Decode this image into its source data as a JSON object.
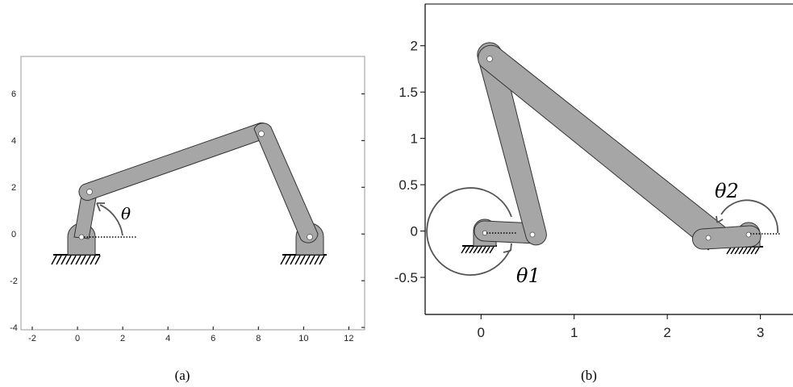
{
  "panel_a": {
    "caption": "(a)",
    "angle_label": "θ",
    "x_ticks": [
      "-2",
      "0",
      "2",
      "4",
      "6",
      "8",
      "10",
      "12"
    ],
    "y_ticks": [
      "-4",
      "-2",
      "0",
      "2",
      "4",
      "6"
    ],
    "x_range": [
      -2.5,
      12.7
    ],
    "y_range": [
      -4.1,
      7.6
    ],
    "ground_pivots": [
      [
        0,
        0
      ],
      [
        10,
        0
      ]
    ],
    "joints": [
      [
        0.35,
        2.0
      ],
      [
        7.9,
        4.5
      ]
    ],
    "colors": {
      "link": "#a6a6a6",
      "outline": "#333333",
      "ground": "#000000"
    }
  },
  "panel_b": {
    "caption": "(b)",
    "angle_labels": {
      "theta1": "θ1",
      "theta2": "θ2"
    },
    "x_ticks": [
      "0",
      "1",
      "2",
      "3"
    ],
    "y_ticks": [
      "2",
      "1.5",
      "1",
      "0.5",
      "0",
      "-0.5"
    ],
    "x_range": [
      -0.6,
      3.35
    ],
    "y_range": [
      -0.9,
      2.45
    ],
    "ground_pivots": [
      [
        0.05,
        0
      ],
      [
        2.95,
        0
      ]
    ],
    "joints": [
      [
        0.58,
        -0.03
      ],
      [
        0.1,
        1.88
      ],
      [
        2.5,
        -0.05
      ]
    ],
    "colors": {
      "link": "#a6a6a6",
      "outline": "#333333",
      "ground": "#000000"
    }
  }
}
